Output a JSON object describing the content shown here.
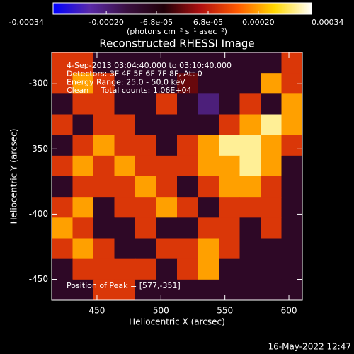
{
  "chart_data": {
    "type": "image",
    "title": "Reconstructed RHESSI Image",
    "x_label": "Heliocentric X (arcsec)",
    "y_label": "Heliocentric Y (arcsec)",
    "colorbar_label": "(photons cm⁻² s⁻¹ asec⁻²)",
    "annotations": [
      "4-Sep-2013 03:04:40.000 to 03:10:40.000",
      "Detectors: 3F 4F 5F 6F 7F 8F, Att 0",
      "Energy Range: 25.0 - 50.0 keV",
      "Clean     Total counts: 1.06E+04"
    ],
    "peak_label": "Position of Peak = [577,-351]",
    "footer": "16-May-2022 12:47",
    "xlim": [
      414.6,
      610.5
    ],
    "ylim": [
      -466,
      -276
    ],
    "xticks": [
      450,
      500,
      550,
      600
    ],
    "yticks": [
      -300,
      -350,
      -400,
      -450
    ],
    "zlim": [
      -0.00034,
      0.00034
    ],
    "zticks": [
      -0.00034,
      {
        "value": -0.0002,
        "label": "-0.00020"
      },
      {
        "value": -6.8e-05,
        "label": "-6.8e-05"
      },
      {
        "value": 6.8e-05,
        "label": "6.8e-05"
      },
      {
        "value": 0.0002,
        "label": "0.00020"
      },
      0.00034
    ],
    "colormap": [
      "#0000ff",
      "#5a2aa8",
      "#3a1040",
      "#200008",
      "#b01010",
      "#ff5a00",
      "#ffd800",
      "#ffffff"
    ],
    "z": [
      [
        0.0001,
        0.0001,
        -0.0001,
        -0.0001,
        -0.0001,
        -0.0001,
        -0.0001,
        -0.0001,
        -0.0001,
        -0.0001,
        -0.0001,
        0.0001
      ],
      [
        0.0001,
        0.0002,
        0.0001,
        -0.0001,
        -0.0001,
        -0.0001,
        0,
        -0.0001,
        -0.0001,
        -0.0001,
        0.0002,
        0.0001
      ],
      [
        -0.0001,
        0.0001,
        0.0001,
        -0.0001,
        -0.0001,
        0.0001,
        -0.0001,
        -0.0002,
        -0.0001,
        0.0001,
        -0.0001,
        0.0002
      ],
      [
        0.0001,
        -0.0001,
        0.0001,
        0.0001,
        -0.0001,
        -0.0001,
        -0.0001,
        -0.0001,
        0.0001,
        0.0002,
        0.0003,
        0.0002
      ],
      [
        -0.0001,
        0.0001,
        0.0002,
        0.0001,
        0.0001,
        -0.0001,
        0.0001,
        0.0002,
        0.0003,
        0.0003,
        0.0002,
        0.0001
      ],
      [
        0.0001,
        0.0002,
        0.0001,
        0.0002,
        0.0001,
        0.0001,
        0.0001,
        0.0002,
        0.0002,
        0.0003,
        0.0002,
        -0.0001
      ],
      [
        -0.0001,
        0.0001,
        0.0001,
        0.0001,
        0.0002,
        0.0001,
        -0.0001,
        0.0001,
        0.0002,
        0.0002,
        0.0001,
        -0.0001
      ],
      [
        0.0001,
        0.0002,
        -0.0001,
        0.0001,
        0.0001,
        0.0002,
        0.0001,
        -0.0001,
        0.0001,
        0.0001,
        0.0001,
        -0.0001
      ],
      [
        0.0002,
        0.0001,
        -0.0001,
        -0.0001,
        0.0001,
        -0.0001,
        -0.0001,
        0.0001,
        0.0001,
        -0.0001,
        0.0001,
        -0.0001
      ],
      [
        0.0001,
        0.0002,
        0.0001,
        -0.0001,
        -0.0001,
        0.0001,
        0.0001,
        0.0002,
        0.0001,
        -0.0001,
        -0.0001,
        -0.0001
      ],
      [
        -0.0001,
        0.0001,
        0.0001,
        0.0001,
        0.0001,
        -0.0001,
        0.0001,
        0.0002,
        -0.0001,
        -0.0001,
        -0.0001,
        -0.0001
      ],
      [
        -0.0001,
        -0.0001,
        0.0001,
        0.0001,
        -0.0001,
        -0.0001,
        -0.0001,
        -0.0001,
        -0.0001,
        -0.0001,
        -0.0001,
        -0.0001
      ]
    ]
  }
}
